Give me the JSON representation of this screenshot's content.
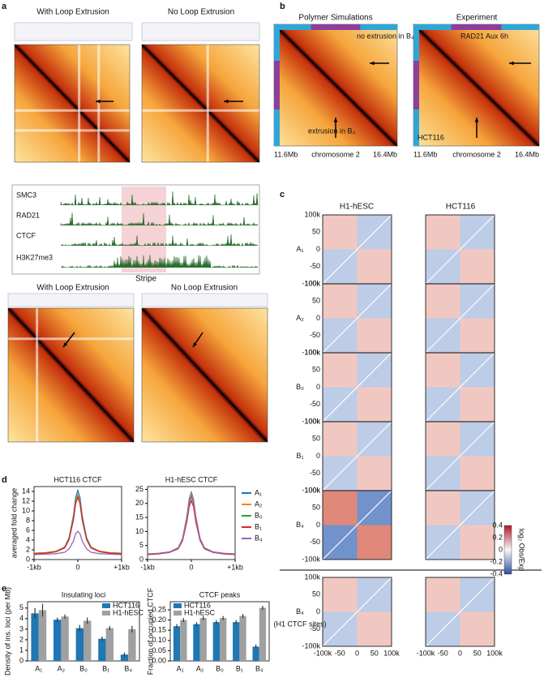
{
  "figure": {
    "panel_labels": [
      "a",
      "b",
      "c",
      "d",
      "e"
    ],
    "a": {
      "top_titles": [
        "With Loop Extrusion",
        "No Loop Extrusion"
      ],
      "tracks": [
        "SMC3",
        "RAD21",
        "CTCF",
        "H3K27me3"
      ],
      "stripe": "Stripe",
      "bottom_titles": [
        "With Loop Extrusion",
        "No Loop Extrusion"
      ]
    },
    "b": {
      "titles": [
        "Polymer Simulations",
        "Experiment"
      ],
      "annotations": [
        "no extrusion in B₄",
        "extrusion in B₄",
        "RAD21 Aux 6h",
        "HCT116"
      ],
      "axis": [
        "11.6Mb",
        "chromosome 2",
        "16.4Mb"
      ]
    },
    "c": {
      "columns": [
        "H1-hESC",
        "HCT116"
      ],
      "rows": [
        "A₁",
        "A₂",
        "B₀",
        "B₁",
        "B₄",
        "B₄"
      ],
      "row_note": "(H1 CTCF sites)",
      "ticks": [
        "100k",
        "50",
        "0",
        "-50",
        "-100k"
      ],
      "x_ticks": [
        "-100k",
        "-50",
        "0",
        "50",
        "100k"
      ],
      "colorbar_ticks": [
        "0.4",
        "0.2",
        "0",
        "-0.2",
        "-0.4"
      ],
      "colorbar_label": "log₂ Obs/Exp"
    }
  },
  "chart_data": [
    {
      "type": "line",
      "title": "HCT116 CTCF",
      "y_label": "averaged fold change",
      "x": [
        -1000,
        -750,
        -500,
        -300,
        -200,
        -100,
        -50,
        0,
        50,
        100,
        200,
        300,
        500,
        750,
        1000
      ],
      "xlim": [
        -1000,
        1000
      ],
      "xticks": [
        {
          "value": -1000,
          "label": "-1kb"
        },
        0,
        {
          "value": 1000,
          "label": "+1kb"
        }
      ],
      "ylim": [
        0,
        15
      ],
      "yticks": [
        0,
        2,
        4,
        6,
        8,
        10,
        12,
        14
      ],
      "series": [
        {
          "name": "A₁",
          "color": "#1f77b4",
          "values": [
            1.3,
            1.4,
            1.7,
            2.6,
            4.5,
            9.0,
            12.7,
            14.2,
            12.7,
            9.0,
            4.5,
            2.6,
            1.7,
            1.4,
            1.3
          ]
        },
        {
          "name": "A₂",
          "color": "#ff7f0e",
          "values": [
            1.3,
            1.4,
            1.7,
            2.5,
            4.3,
            8.5,
            11.9,
            13.3,
            11.9,
            8.5,
            4.3,
            2.5,
            1.7,
            1.4,
            1.3
          ]
        },
        {
          "name": "B₀",
          "color": "#2ca02c",
          "values": [
            1.2,
            1.3,
            1.6,
            2.4,
            4.2,
            8.3,
            11.6,
            13.0,
            11.6,
            8.3,
            4.2,
            2.4,
            1.6,
            1.3,
            1.2
          ]
        },
        {
          "name": "B₁",
          "color": "#d62728",
          "values": [
            1.2,
            1.3,
            1.6,
            2.4,
            4.1,
            8.2,
            11.5,
            12.8,
            11.5,
            8.2,
            4.1,
            2.4,
            1.6,
            1.3,
            1.2
          ]
        },
        {
          "name": "B₄",
          "color": "#9467bd",
          "values": [
            1.0,
            1.1,
            1.2,
            1.5,
            2.2,
            3.8,
            5.3,
            5.8,
            5.3,
            3.8,
            2.2,
            1.5,
            1.2,
            1.1,
            1.0
          ]
        }
      ]
    },
    {
      "type": "line",
      "title": "H1-hESC CTCF",
      "x": [
        -1000,
        -750,
        -500,
        -300,
        -200,
        -100,
        -50,
        0,
        50,
        100,
        200,
        300,
        500,
        750,
        1000
      ],
      "xlim": [
        -1000,
        1000
      ],
      "xticks": [
        {
          "value": -1000,
          "label": "-1kb"
        },
        0,
        {
          "value": 1000,
          "label": "+1kb"
        }
      ],
      "ylim": [
        0,
        26
      ],
      "yticks": [
        0,
        5,
        10,
        15,
        20,
        25
      ],
      "legend": "right",
      "series": [
        {
          "name": "A₁",
          "color": "#1f77b4",
          "values": [
            2.0,
            2.2,
            2.7,
            4.2,
            7.5,
            15.5,
            21.5,
            24,
            21.5,
            15.5,
            7.5,
            4.2,
            2.7,
            2.2,
            2.0
          ]
        },
        {
          "name": "A₂",
          "color": "#ff7f0e",
          "values": [
            2.0,
            2.2,
            2.7,
            4.1,
            7.4,
            15.2,
            21.0,
            23.5,
            21.0,
            15.2,
            7.4,
            4.1,
            2.7,
            2.2,
            2.0
          ]
        },
        {
          "name": "B₀",
          "color": "#2ca02c",
          "values": [
            1.9,
            2.1,
            2.6,
            4.0,
            7.1,
            14.6,
            20.1,
            22.5,
            20.1,
            14.6,
            7.1,
            4.0,
            2.6,
            2.1,
            1.9
          ]
        },
        {
          "name": "B₁",
          "color": "#d62728",
          "values": [
            1.8,
            2.0,
            2.5,
            3.8,
            6.7,
            13.6,
            18.8,
            21,
            18.8,
            13.6,
            6.7,
            3.8,
            2.5,
            2.0,
            1.8
          ]
        },
        {
          "name": "B₄",
          "color": "#9467bd",
          "values": [
            2.0,
            2.2,
            2.7,
            4.1,
            7.2,
            14.9,
            20.6,
            23,
            20.6,
            14.9,
            7.2,
            4.1,
            2.7,
            2.2,
            2.0
          ]
        }
      ]
    },
    {
      "type": "bar",
      "title": "Insulating loci",
      "y_label": "Density of ins. loci (per Mb)",
      "categories": [
        "A₁",
        "A₂",
        "B₀",
        "B₁",
        "B₄"
      ],
      "ylim": [
        0,
        5.6
      ],
      "yticks": [
        0,
        1,
        2,
        3,
        4,
        5
      ],
      "legend": "upper right",
      "series": [
        {
          "name": "HCT116",
          "color": "#1f77b4",
          "values": [
            4.5,
            3.9,
            3.1,
            2.1,
            0.6
          ],
          "errors": [
            0.5,
            0.2,
            0.3,
            0.2,
            0.2
          ]
        },
        {
          "name": "H1-hESC",
          "color": "#a0a0a0",
          "values": [
            4.8,
            4.2,
            3.8,
            3.1,
            3.0
          ],
          "errors": [
            0.6,
            0.2,
            0.3,
            0.2,
            0.3
          ]
        }
      ]
    },
    {
      "type": "bar",
      "title": "CTCF peaks",
      "y_label": "Fraction of occupied CTCF",
      "categories": [
        "A₁",
        "A₂",
        "B₀",
        "B₁",
        "B₄"
      ],
      "ylim": [
        0,
        0.29
      ],
      "yticks": [
        {
          "value": 0,
          "label": "0.00"
        },
        0.05,
        {
          "value": 0.1,
          "label": "0.10"
        },
        0.15,
        {
          "value": 0.2,
          "label": "0.20"
        },
        0.25
      ],
      "legend": "upper left",
      "series": [
        {
          "name": "HCT116",
          "color": "#1f77b4",
          "values": [
            0.17,
            0.18,
            0.19,
            0.19,
            0.07
          ],
          "errors": [
            0.01,
            0.01,
            0.01,
            0.01,
            0.01
          ]
        },
        {
          "name": "H1-hESC",
          "color": "#a0a0a0",
          "values": [
            0.2,
            0.21,
            0.21,
            0.22,
            0.26
          ],
          "errors": [
            0.01,
            0.01,
            0.01,
            0.01,
            0.01
          ]
        }
      ]
    }
  ]
}
